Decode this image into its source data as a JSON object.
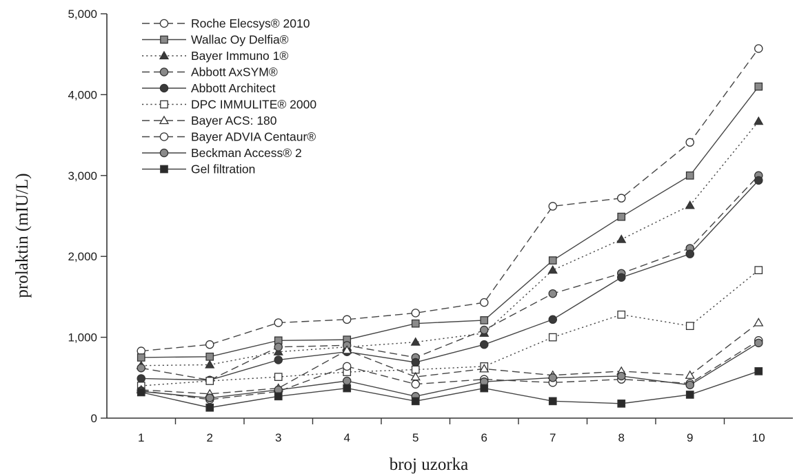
{
  "chart_data": {
    "type": "line",
    "title": "",
    "xlabel": "broj uzorka",
    "ylabel": "prolaktin (mIU/L)",
    "x": [
      1,
      2,
      3,
      4,
      5,
      6,
      7,
      8,
      9,
      10
    ],
    "xlim": [
      0.5,
      10.5
    ],
    "ylim": [
      0,
      5000
    ],
    "yticks": [
      0,
      1000,
      2000,
      3000,
      4000,
      5000
    ],
    "ytick_labels": [
      "0",
      "1,000",
      "2,000",
      "3,000",
      "4,000",
      "5,000"
    ],
    "xtick_labels": [
      "1",
      "2",
      "3",
      "4",
      "5",
      "6",
      "7",
      "8",
      "9",
      "10"
    ],
    "grid": false,
    "legend_position": "top-left",
    "series": [
      {
        "name": "Roche Elecsys® 2010",
        "line": "dashed",
        "marker": "circle-open",
        "values": [
          830,
          910,
          1180,
          1220,
          1300,
          1430,
          2620,
          2720,
          3410,
          4570
        ]
      },
      {
        "name": "Wallac Oy Delfia®",
        "line": "solid",
        "marker": "square-gray",
        "values": [
          750,
          760,
          960,
          970,
          1170,
          1210,
          1950,
          2490,
          3000,
          4100
        ]
      },
      {
        "name": "Bayer Immuno 1®",
        "line": "dotted",
        "marker": "triangle-filled",
        "values": [
          650,
          660,
          820,
          880,
          940,
          1050,
          1830,
          2210,
          2630,
          3670
        ]
      },
      {
        "name": "Abbott AxSYM®",
        "line": "dashed",
        "marker": "circle-gray",
        "values": [
          620,
          470,
          880,
          900,
          750,
          1090,
          1540,
          1790,
          2100,
          3000
        ]
      },
      {
        "name": "Abbott Architect",
        "line": "solid",
        "marker": "circle-filled",
        "values": [
          490,
          470,
          720,
          820,
          690,
          910,
          1220,
          1740,
          2030,
          2940
        ]
      },
      {
        "name": "DPC IMMULITE® 2000",
        "line": "dotted",
        "marker": "square-open",
        "values": [
          400,
          460,
          510,
          570,
          600,
          640,
          1000,
          1280,
          1140,
          1830
        ]
      },
      {
        "name": "Bayer ACS: 180",
        "line": "dashed",
        "marker": "triangle-open",
        "values": [
          350,
          300,
          370,
          840,
          510,
          610,
          530,
          580,
          530,
          1180
        ]
      },
      {
        "name": "Bayer ADVIA Centaur®",
        "line": "dashed",
        "marker": "circle-open",
        "values": [
          340,
          230,
          330,
          640,
          420,
          480,
          440,
          480,
          430,
          960
        ]
      },
      {
        "name": "Beckman Access® 2",
        "line": "solid",
        "marker": "circle-gray",
        "values": [
          330,
          250,
          350,
          460,
          270,
          450,
          500,
          520,
          410,
          930
        ]
      },
      {
        "name": "Gel filtration",
        "line": "solid",
        "marker": "square-filled",
        "values": [
          320,
          130,
          270,
          370,
          210,
          370,
          210,
          180,
          290,
          580
        ]
      }
    ]
  }
}
